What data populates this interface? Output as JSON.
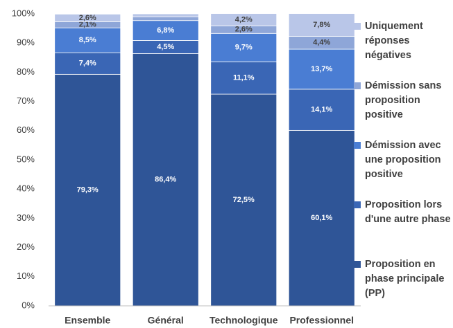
{
  "chart_data": {
    "type": "stacked_bar",
    "categories": [
      "Ensemble",
      "Général",
      "Technologique",
      "Professionnel"
    ],
    "series": [
      {
        "name": "Proposition en phase principale (PP)",
        "color": "#2f5597",
        "values": [
          79.3,
          86.4,
          72.5,
          60.1
        ],
        "value_labels": [
          "79,3%",
          "86,4%",
          "72,5%",
          "60,1%"
        ]
      },
      {
        "name": "Proposition lors d'une autre phase",
        "color": "#3a66b5",
        "values": [
          7.4,
          4.5,
          11.1,
          14.1
        ],
        "value_labels": [
          "7,4%",
          "4,5%",
          "11,1%",
          "14,1%"
        ]
      },
      {
        "name": "Démission avec une proposition positive",
        "color": "#4a7dd3",
        "values": [
          8.5,
          6.8,
          9.7,
          13.7
        ],
        "value_labels": [
          "8,5%",
          "6,8%",
          "9,7%",
          "13,7%"
        ]
      },
      {
        "name": "Démission sans proposition positive",
        "color": "#8ea6d8",
        "values": [
          2.1,
          1.3,
          2.6,
          4.4
        ],
        "value_labels": [
          "2,1%",
          null,
          "2,6%",
          "4,4%"
        ]
      },
      {
        "name": "Uniquement réponses négatives",
        "color": "#b9c6e8",
        "values": [
          2.6,
          1.0,
          4.2,
          7.8
        ],
        "value_labels": [
          "2,6%",
          null,
          "4,2%",
          "7,8%"
        ]
      }
    ],
    "ylim": [
      0,
      100
    ],
    "yticks": [
      {
        "value": 0,
        "label": "0%"
      },
      {
        "value": 10,
        "label": "10%"
      },
      {
        "value": 20,
        "label": "20%"
      },
      {
        "value": 30,
        "label": "30%"
      },
      {
        "value": 40,
        "label": "40%"
      },
      {
        "value": 50,
        "label": "50%"
      },
      {
        "value": 60,
        "label": "60%"
      },
      {
        "value": 70,
        "label": "70%"
      },
      {
        "value": 80,
        "label": "80%"
      },
      {
        "value": 90,
        "label": "90%"
      },
      {
        "value": 100,
        "label": "100%"
      }
    ],
    "grid": false,
    "legend": "right"
  }
}
